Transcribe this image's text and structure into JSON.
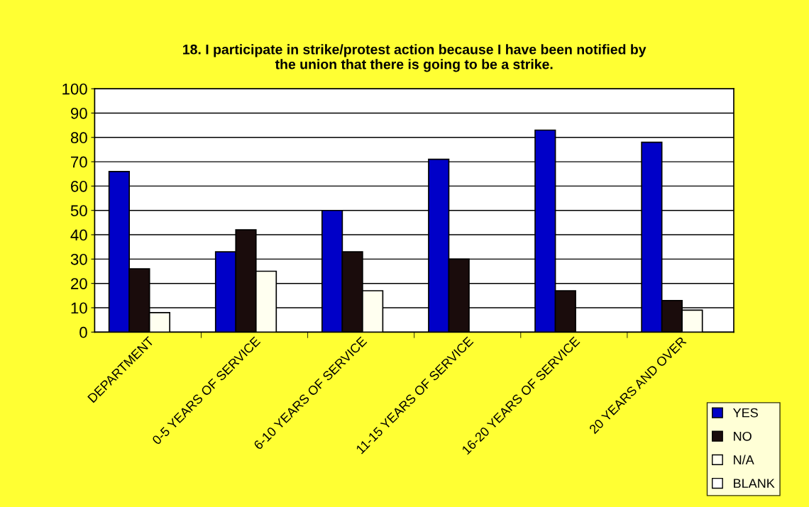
{
  "chart_data": {
    "type": "bar",
    "title": "18. I participate in strike/protest action because I have been notified by\nthe union that there is going to be a strike.",
    "categories": [
      "DEPARTMENT",
      "0-5 YEARS OF SERVICE",
      "6-10 YEARS OF SERVICE",
      "11-15 YEARS OF SERVICE",
      "16-20 YEARS OF SERVICE",
      "20 YEARS AND OVER"
    ],
    "series": [
      {
        "name": "YES",
        "color": "#0000c8",
        "values": [
          66,
          33,
          50,
          71,
          83,
          78
        ]
      },
      {
        "name": "NO",
        "color": "#1a0c0c",
        "values": [
          26,
          42,
          33,
          30,
          17,
          13
        ]
      },
      {
        "name": "N/A",
        "color": "#fffff0",
        "values": [
          8,
          25,
          17,
          0,
          0,
          9
        ]
      },
      {
        "name": "BLANK",
        "color": "#ffffff",
        "values": [
          0,
          0,
          0,
          0,
          0,
          0
        ]
      }
    ],
    "ylim": [
      0,
      100
    ],
    "yticks": [
      0,
      10,
      20,
      30,
      40,
      50,
      60,
      70,
      80,
      90,
      100
    ],
    "grid": "y",
    "legend": "bottom right"
  }
}
